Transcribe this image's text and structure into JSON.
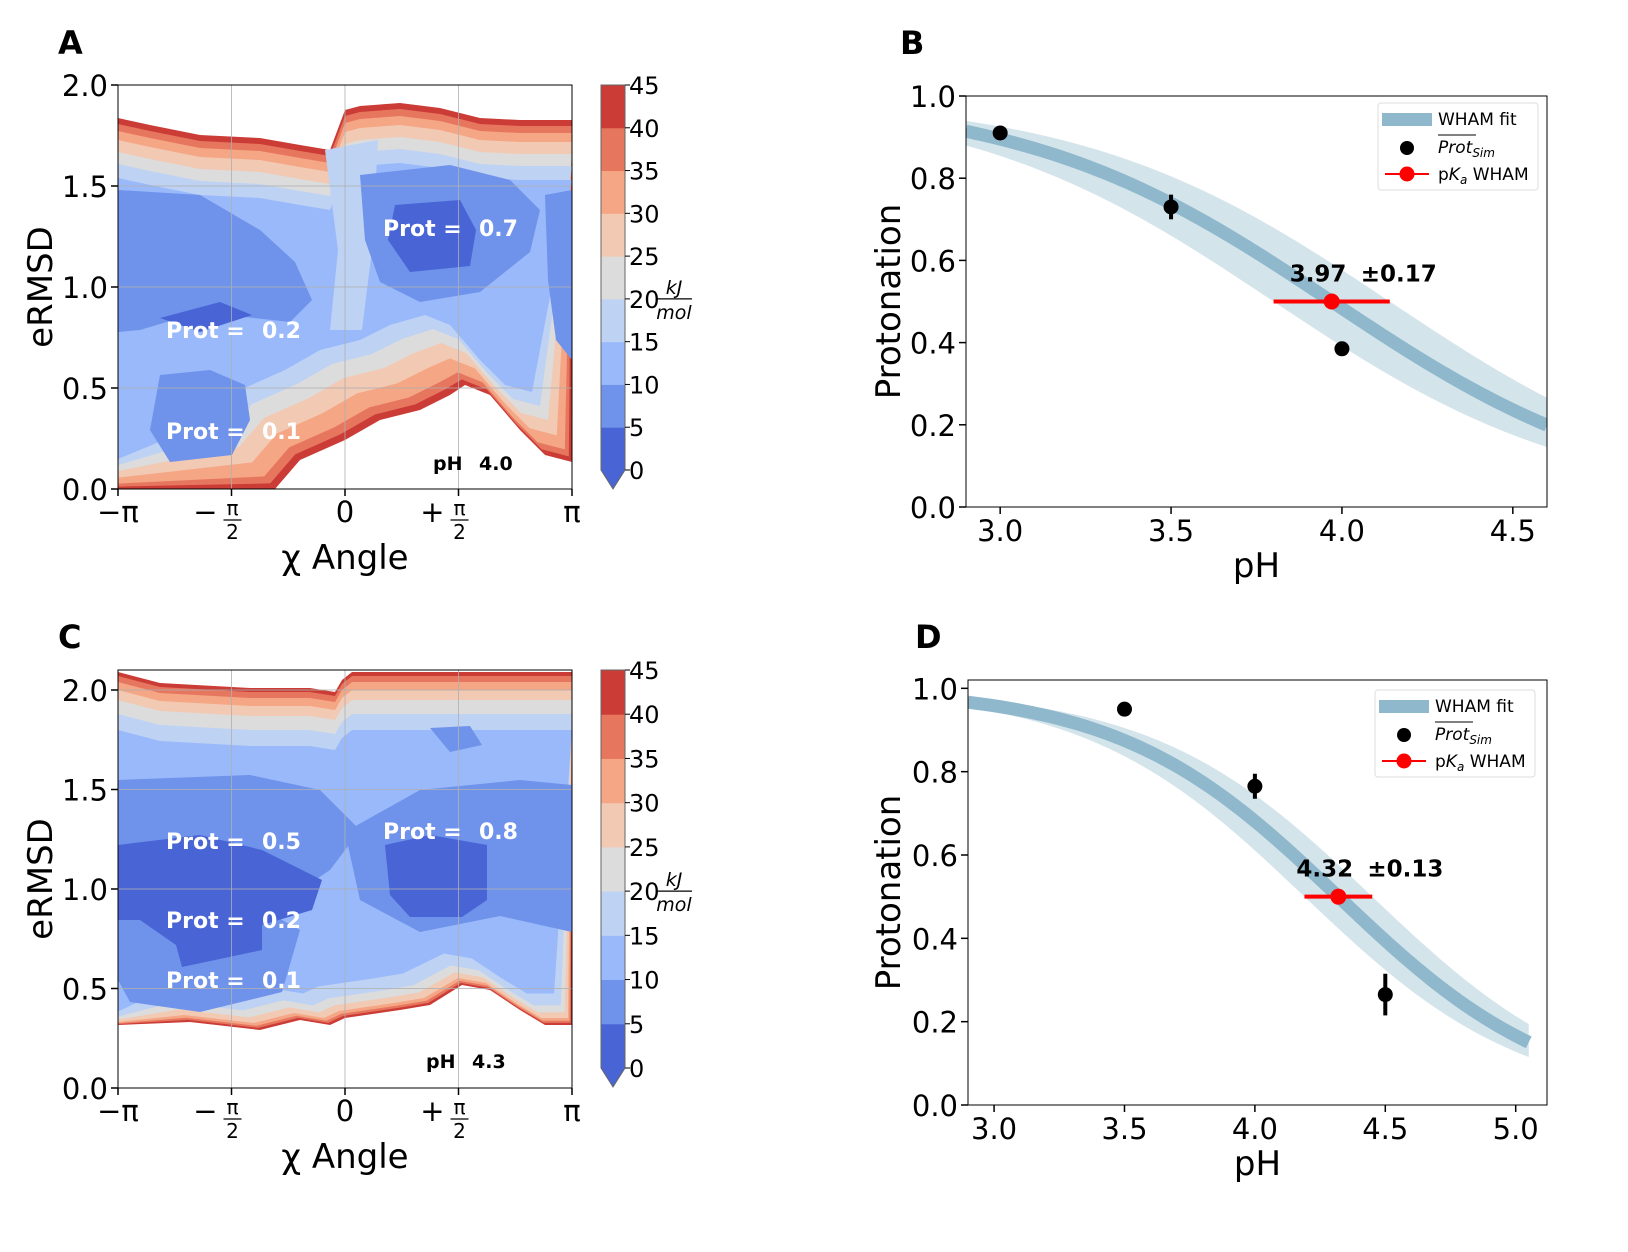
{
  "colors": {
    "levels": [
      "#4964d4",
      "#6f92ea",
      "#99b9fa",
      "#bed2f4",
      "#dcdcdc",
      "#f2c9b3",
      "#f4a685",
      "#e7765f",
      "#cb3c36"
    ],
    "fit_line": "#8fb8cc",
    "fit_band": "#cfe1e9",
    "pka_marker": "#ff0000",
    "points": "#000000"
  },
  "chart_data": [
    {
      "panel": "A",
      "type": "heatmap",
      "subtype": "filled contour",
      "xlabel": "χ Angle",
      "ylabel": "eRMSD",
      "xlim": [
        -3.1416,
        3.1416
      ],
      "ylim": [
        0,
        2.0
      ],
      "xticks": [
        {
          "sign": "−",
          "num": "π",
          "den": ""
        },
        {
          "sign": "−",
          "num": "π",
          "den": "2"
        },
        {
          "sign": "",
          "num": "0",
          "den": ""
        },
        {
          "sign": "+",
          "num": "π",
          "den": "2"
        },
        {
          "sign": "",
          "num": "π",
          "den": ""
        }
      ],
      "yticks": [
        "0.0",
        "0.5",
        "1.0",
        "1.5",
        "2.0"
      ],
      "grid": true,
      "colorbar": {
        "ticks": [
          "0",
          "5",
          "10",
          "15",
          "20",
          "25",
          "30",
          "35",
          "40",
          "45"
        ],
        "unit_num": "kJ",
        "unit_den": "mol",
        "range": [
          0,
          45
        ],
        "extend": "min"
      },
      "annotations": [
        {
          "text_a": "Prot =",
          "text_b": "0.7"
        },
        {
          "text_a": "Prot =",
          "text_b": "0.2"
        },
        {
          "text_a": "Prot =",
          "text_b": "0.1"
        }
      ],
      "ph_label": "pH",
      "ph_value": "4.0"
    },
    {
      "panel": "B",
      "type": "scatter",
      "xlabel": "pH",
      "ylabel": "Protonation",
      "xlim": [
        2.9,
        4.6
      ],
      "ylim": [
        0,
        1.0
      ],
      "xticks": [
        "3.0",
        "3.5",
        "4.0",
        "4.5"
      ],
      "yticks": [
        "0.0",
        "0.2",
        "0.4",
        "0.6",
        "0.8",
        "1.0"
      ],
      "grid": false,
      "points": [
        {
          "x": 3.0,
          "y": 0.91,
          "err": 0.0
        },
        {
          "x": 3.5,
          "y": 0.73,
          "err": 0.03
        },
        {
          "x": 4.0,
          "y": 0.385,
          "err": 0.01
        }
      ],
      "pka": 3.97,
      "pka_err": 0.17,
      "hill": 0.96,
      "annotation_value": "3.97",
      "annotation_err": "±0.17",
      "legend": {
        "position": "top-right",
        "fit": "WHAM fit",
        "sim_main": "Prot",
        "sim_sub": "Sim",
        "pka_pre": "p",
        "pka_k": "K",
        "pka_sub": "a",
        "pka_post": " WHAM"
      }
    },
    {
      "panel": "C",
      "type": "heatmap",
      "subtype": "filled contour",
      "xlabel": "χ Angle",
      "ylabel": "eRMSD",
      "xlim": [
        -3.1416,
        3.1416
      ],
      "ylim": [
        0,
        2.1
      ],
      "xticks": [
        {
          "sign": "−",
          "num": "π",
          "den": ""
        },
        {
          "sign": "−",
          "num": "π",
          "den": "2"
        },
        {
          "sign": "",
          "num": "0",
          "den": ""
        },
        {
          "sign": "+",
          "num": "π",
          "den": "2"
        },
        {
          "sign": "",
          "num": "π",
          "den": ""
        }
      ],
      "yticks": [
        "0.0",
        "0.5",
        "1.0",
        "1.5",
        "2.0"
      ],
      "grid": true,
      "colorbar": {
        "ticks": [
          "0",
          "5",
          "10",
          "15",
          "20",
          "25",
          "30",
          "35",
          "40",
          "45"
        ],
        "unit_num": "kJ",
        "unit_den": "mol",
        "range": [
          0,
          45
        ],
        "extend": "min"
      },
      "annotations": [
        {
          "text_a": "Prot =",
          "text_b": "0.5"
        },
        {
          "text_a": "Prot =",
          "text_b": "0.8"
        },
        {
          "text_a": "Prot =",
          "text_b": "0.2"
        },
        {
          "text_a": "Prot =",
          "text_b": "0.1"
        }
      ],
      "ph_label": "pH",
      "ph_value": "4.3"
    },
    {
      "panel": "D",
      "type": "scatter",
      "xlabel": "pH",
      "ylabel": "Protonation",
      "xlim": [
        2.9,
        5.12
      ],
      "ylim": [
        0,
        1.02
      ],
      "xticks": [
        "3.0",
        "3.5",
        "4.0",
        "4.5",
        "5.0"
      ],
      "yticks": [
        "0.0",
        "0.2",
        "0.4",
        "0.6",
        "0.8",
        "1.0"
      ],
      "grid": false,
      "points": [
        {
          "x": 3.5,
          "y": 0.95,
          "err": 0.0
        },
        {
          "x": 4.0,
          "y": 0.765,
          "err": 0.03
        },
        {
          "x": 4.5,
          "y": 0.265,
          "err": 0.05
        }
      ],
      "pka": 4.32,
      "pka_err": 0.13,
      "hill": 1.03,
      "annotation_value": "4.32",
      "annotation_err": "±0.13",
      "legend": {
        "position": "top-right",
        "fit": "WHAM fit",
        "sim_main": "Prot",
        "sim_sub": "Sim",
        "pka_pre": "p",
        "pka_k": "K",
        "pka_sub": "a",
        "pka_post": " WHAM"
      }
    }
  ]
}
